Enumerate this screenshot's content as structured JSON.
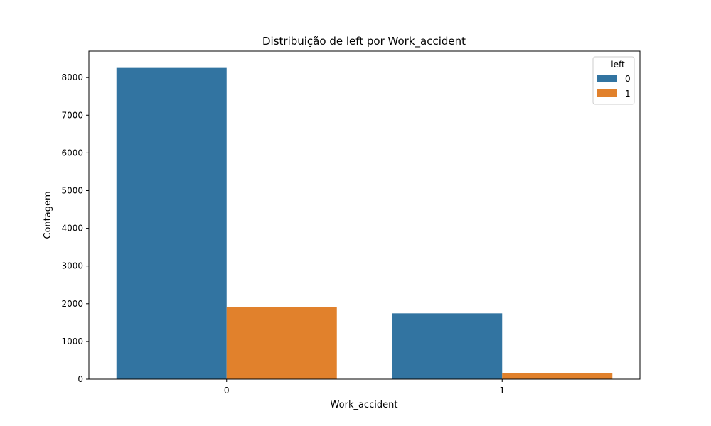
{
  "chart_data": {
    "type": "bar",
    "title": "Distribuição de left por Work_accident",
    "xlabel": "Work_accident",
    "ylabel": "Contagem",
    "categories": [
      "0",
      "1"
    ],
    "series": [
      {
        "name": "0",
        "values": [
          8255,
          1745
        ]
      },
      {
        "name": "1",
        "values": [
          1902,
          169
        ]
      }
    ],
    "ylim": [
      0,
      8700
    ],
    "yticks": [
      0,
      1000,
      2000,
      3000,
      4000,
      5000,
      6000,
      7000,
      8000
    ],
    "legend": {
      "title": "left",
      "placement": "top-right"
    },
    "grid": false,
    "colors": [
      "#3274a1",
      "#e1812c"
    ]
  }
}
